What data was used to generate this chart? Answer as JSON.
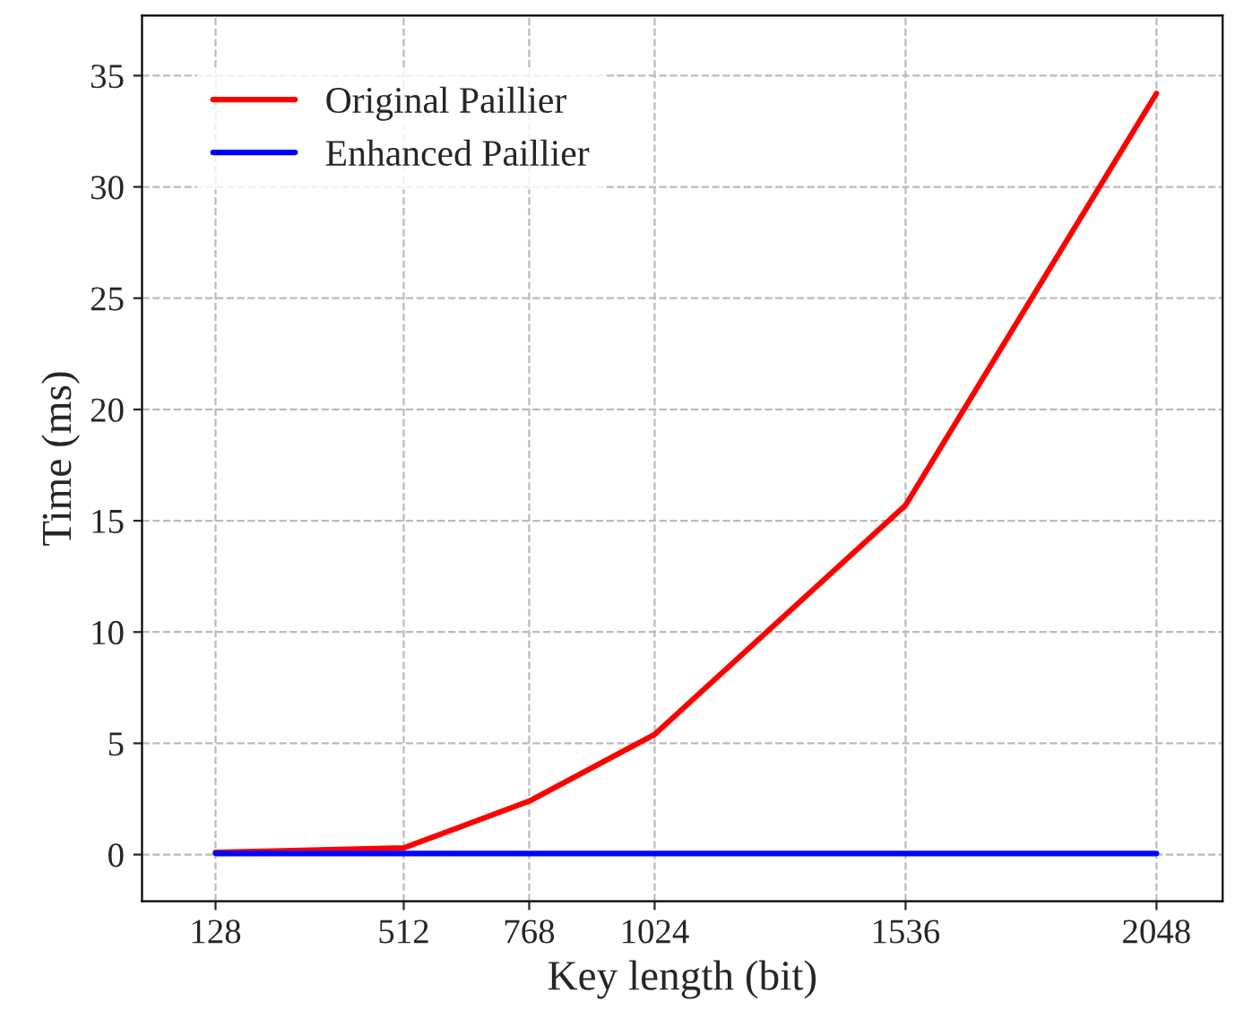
{
  "chart_data": {
    "type": "line",
    "xlabel": "Key length (bit)",
    "ylabel": "Time (ms)",
    "x": [
      128,
      512,
      768,
      1024,
      1536,
      2048
    ],
    "series": [
      {
        "name": "Original Paillier",
        "color": "#ff0000",
        "values": [
          0.1,
          0.3,
          2.4,
          5.4,
          15.7,
          34.2
        ]
      },
      {
        "name": "Enhanced Paillier",
        "color": "#0000ff",
        "values": [
          0.05,
          0.05,
          0.05,
          0.05,
          0.05,
          0.05
        ]
      }
    ],
    "xlim": [
      -22,
      2183
    ],
    "xticks": [
      128,
      512,
      768,
      1024,
      1536,
      2048
    ],
    "ylim": [
      -2.1,
      37.7
    ],
    "yticks": [
      0,
      5,
      10,
      15,
      20,
      25,
      30,
      35
    ],
    "grid": true,
    "legend": "top left",
    "line_style": "solid",
    "marker": "none"
  }
}
